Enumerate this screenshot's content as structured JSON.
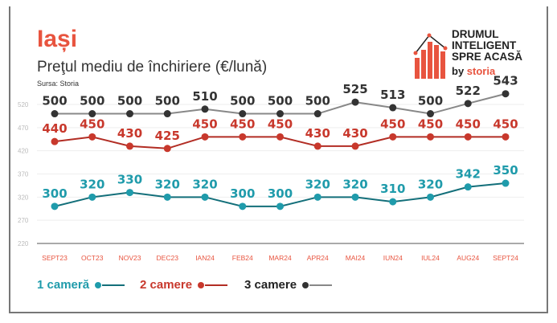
{
  "header": {
    "title": "Iași",
    "subtitle": "Preţul mediu de închiriere (€/lună)",
    "source": "Sursa: Storia"
  },
  "logo": {
    "line1": "DRUMUL",
    "line2": "INTELIGENT",
    "line3": "SPRE ACASĂ",
    "by": "by",
    "brand": "storia"
  },
  "chart_data": {
    "type": "line",
    "title": "Preţul mediu de închiriere (€/lună)",
    "categories": [
      "SEPT23",
      "OCT23",
      "NOV23",
      "DEC23",
      "IAN24",
      "FEB24",
      "MAR24",
      "APR24",
      "MAI24",
      "IUN24",
      "IUL24",
      "AUG24",
      "SEPT24"
    ],
    "yticks": [
      520,
      470,
      420,
      370,
      320,
      270,
      220
    ],
    "ylim": [
      220,
      520
    ],
    "series": [
      {
        "name": "1 cameră",
        "color": "#1f9bab",
        "line": "#136f7a",
        "values": [
          300,
          320,
          330,
          320,
          320,
          300,
          300,
          320,
          320,
          310,
          320,
          342,
          350
        ]
      },
      {
        "name": "2 camere",
        "color": "#c8382c",
        "line": "#b22d24",
        "values": [
          440,
          450,
          430,
          425,
          450,
          450,
          450,
          430,
          430,
          450,
          450,
          450,
          450
        ]
      },
      {
        "name": "3 camere",
        "color": "#333333",
        "line": "#888888",
        "values": [
          500,
          500,
          500,
          500,
          510,
          500,
          500,
          500,
          525,
          513,
          500,
          522,
          543
        ]
      }
    ],
    "legend": "bottom-left"
  }
}
